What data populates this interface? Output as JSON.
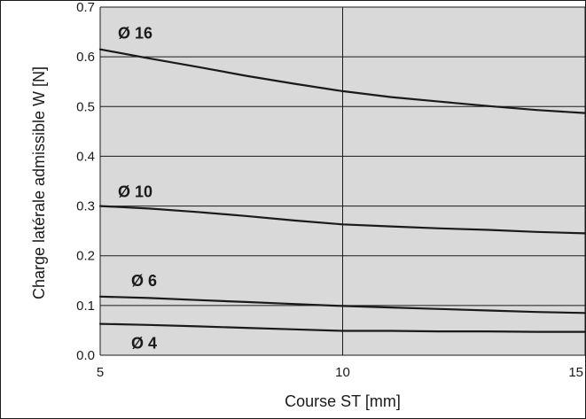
{
  "chart_data": {
    "type": "line",
    "title": "",
    "xlabel": "Course ST [mm]",
    "ylabel": "Charge latérale admissible W [N]",
    "xlim": [
      5,
      15
    ],
    "ylim": [
      0,
      0.7
    ],
    "x_ticks": [
      "5",
      "10",
      "15"
    ],
    "y_ticks": [
      "0.0",
      "0.1",
      "0.2",
      "0.3",
      "0.4",
      "0.5",
      "0.6",
      "0.7"
    ],
    "grid": true,
    "plot_background": "#d9d9d9",
    "line_color": "#1a1a1a",
    "series": [
      {
        "name": "Ø 16",
        "x": [
          5,
          6,
          7,
          8,
          9,
          10,
          11,
          12,
          13,
          14,
          15
        ],
        "y": [
          0.615,
          0.597,
          0.58,
          0.562,
          0.546,
          0.531,
          0.519,
          0.51,
          0.501,
          0.493,
          0.487
        ]
      },
      {
        "name": "Ø 10",
        "x": [
          5,
          6,
          7,
          8,
          9,
          10,
          11,
          12,
          13,
          14,
          15
        ],
        "y": [
          0.3,
          0.295,
          0.288,
          0.28,
          0.271,
          0.263,
          0.259,
          0.255,
          0.252,
          0.248,
          0.245
        ]
      },
      {
        "name": "Ø 6",
        "x": [
          5,
          6,
          7,
          8,
          9,
          10,
          11,
          12,
          13,
          14,
          15
        ],
        "y": [
          0.118,
          0.115,
          0.111,
          0.107,
          0.103,
          0.099,
          0.096,
          0.093,
          0.09,
          0.087,
          0.085
        ]
      },
      {
        "name": "Ø 4",
        "x": [
          5,
          6,
          7,
          8,
          9,
          10,
          11,
          12,
          13,
          14,
          15
        ],
        "y": [
          0.063,
          0.061,
          0.058,
          0.055,
          0.052,
          0.049,
          0.049,
          0.048,
          0.048,
          0.047,
          0.047
        ]
      }
    ]
  }
}
